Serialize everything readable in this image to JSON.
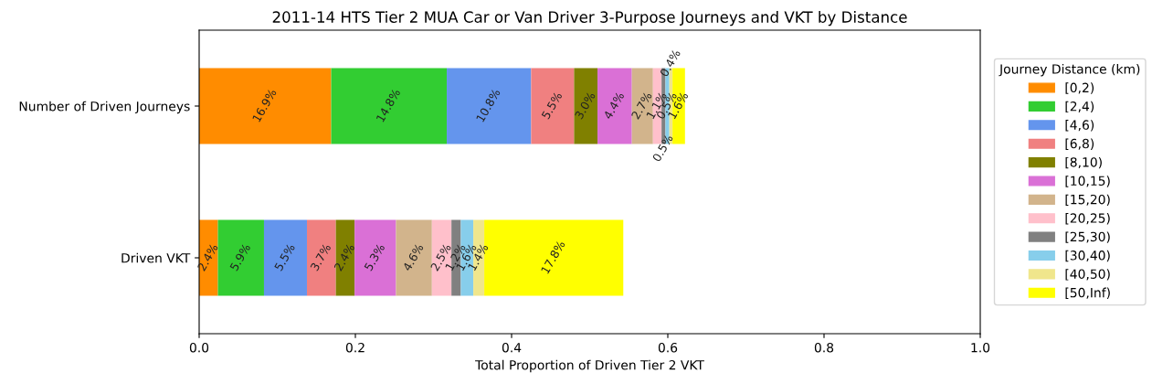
{
  "chart_data": {
    "type": "bar",
    "orientation": "horizontal",
    "stacked": true,
    "title": "2011-14 HTS Tier 2 MUA Car or Van Driver 3-Purpose Journeys and VKT by Distance",
    "xlabel": "Total Proportion of Driven Tier 2 VKT",
    "legend_title": "Journey Distance (km)",
    "legend": "right",
    "grid": false,
    "categories": [
      "Number of Driven Journeys",
      "Driven VKT"
    ],
    "xlim": [
      0,
      1
    ],
    "xticks": [
      {
        "value": 0,
        "label": "0.0"
      },
      {
        "value": 0.2,
        "label": "0.2"
      },
      {
        "value": 0.4,
        "label": "0.4"
      },
      {
        "value": 0.6,
        "label": "0.6"
      },
      {
        "value": 0.8,
        "label": "0.8"
      },
      {
        "value": 1,
        "label": "1.0"
      }
    ],
    "series": [
      {
        "name": "[0,2)",
        "color": "#ff8c00",
        "values": [
          0.169,
          0.024
        ],
        "value_labels": [
          "16.9%",
          "2.4%"
        ]
      },
      {
        "name": "[2,4)",
        "color": "#32cd32",
        "values": [
          0.148,
          0.059
        ],
        "value_labels": [
          "14.8%",
          "5.9%"
        ]
      },
      {
        "name": "[4,6)",
        "color": "#6495ed",
        "values": [
          0.108,
          0.055
        ],
        "value_labels": [
          "10.8%",
          "5.5%"
        ]
      },
      {
        "name": "[6,8)",
        "color": "#f08080",
        "values": [
          0.055,
          0.037
        ],
        "value_labels": [
          "5.5%",
          "3.7%"
        ]
      },
      {
        "name": "[8,10)",
        "color": "#808000",
        "values": [
          0.03,
          0.024
        ],
        "value_labels": [
          "3.0%",
          "2.4%"
        ]
      },
      {
        "name": "[10,15)",
        "color": "#da70d6",
        "values": [
          0.044,
          0.053
        ],
        "value_labels": [
          "4.4%",
          "5.3%"
        ]
      },
      {
        "name": "[15,20)",
        "color": "#d2b48c",
        "values": [
          0.027,
          0.046
        ],
        "value_labels": [
          "2.7%",
          "4.6%"
        ]
      },
      {
        "name": "[20,25)",
        "color": "#ffc0cb",
        "values": [
          0.011,
          0.025
        ],
        "value_labels": [
          "1.1%",
          "2.5%"
        ]
      },
      {
        "name": "[25,30)",
        "color": "#808080",
        "values": [
          0.005,
          0.012
        ],
        "value_labels": [
          "0.5%",
          "1.2%"
        ]
      },
      {
        "name": "[30,40)",
        "color": "#87ceeb",
        "values": [
          0.005,
          0.016
        ],
        "value_labels": [
          "0.5%",
          "1.6%"
        ]
      },
      {
        "name": "[40,50)",
        "color": "#f0e68c",
        "values": [
          0.004,
          0.014
        ],
        "value_labels": [
          "0.4%",
          "1.4%"
        ]
      },
      {
        "name": "[50,Inf)",
        "color": "#ffff00",
        "values": [
          0.016,
          0.178
        ],
        "value_labels": [
          "1.6%",
          "17.8%"
        ]
      }
    ]
  }
}
